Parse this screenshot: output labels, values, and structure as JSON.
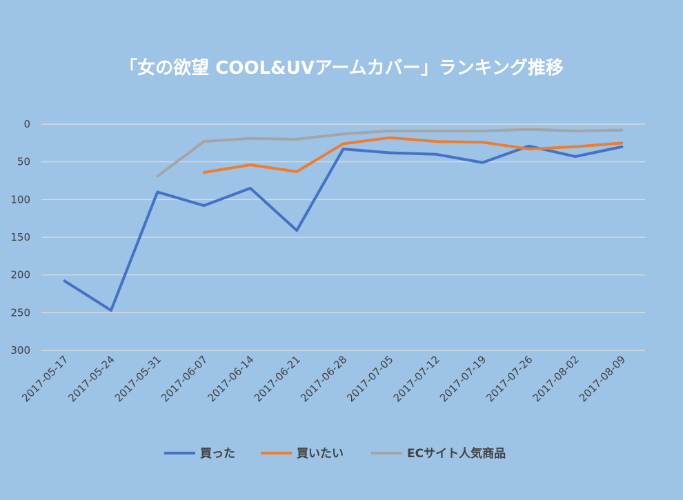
{
  "chart_data": {
    "type": "line",
    "title": "「女の欲望 COOL&UVアームカバー」ランキング推移",
    "categories": [
      "2017-05-17",
      "2017-05-24",
      "2017-05-31",
      "2017-06-07",
      "2017-06-14",
      "2017-06-21",
      "2017-06-28",
      "2017-07-05",
      "2017-07-12",
      "2017-07-19",
      "2017-07-26",
      "2017-08-02",
      "2017-08-09"
    ],
    "y_axis": {
      "reversed": true,
      "ylim": [
        0,
        300
      ],
      "ticks": [
        0,
        50,
        100,
        150,
        200,
        250,
        300
      ]
    },
    "grid": true,
    "legend_position": "bottom",
    "series": [
      {
        "name": "買った",
        "color": "#4472c4",
        "values": [
          208,
          247,
          90,
          108,
          85,
          141,
          33,
          38,
          40,
          51,
          29,
          43,
          30
        ]
      },
      {
        "name": "買いたい",
        "color": "#ed7d31",
        "values": [
          null,
          null,
          null,
          64,
          54,
          63,
          26,
          18,
          23,
          24,
          33,
          30,
          25
        ]
      },
      {
        "name": "ECサイト人気商品",
        "color": "#a5a5a5",
        "values": [
          null,
          null,
          69,
          23,
          19,
          20,
          13,
          9,
          9,
          9,
          7,
          9,
          8
        ]
      }
    ]
  }
}
